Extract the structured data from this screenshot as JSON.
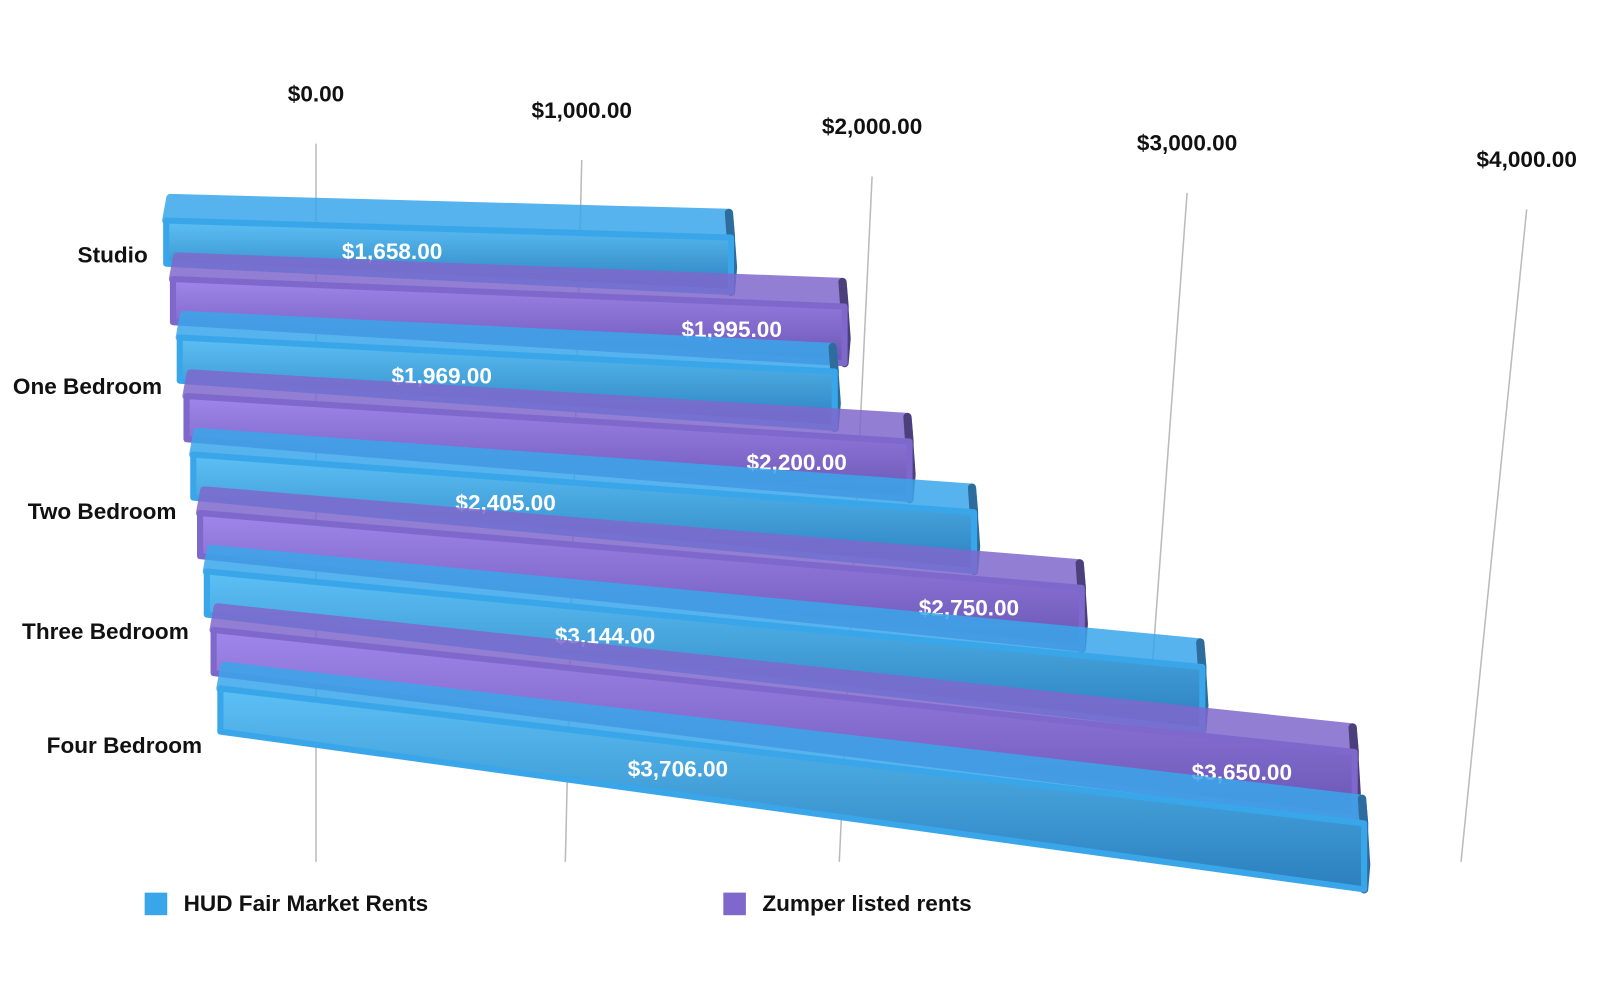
{
  "chart_data": {
    "type": "bar3d",
    "categories": [
      "Studio",
      "One Bedroom",
      "Two Bedroom",
      "Three Bedroom",
      "Four Bedroom"
    ],
    "series": [
      {
        "name": "HUD Fair Market Rents",
        "color": "#3aa6ea",
        "values": [
          1658,
          1969,
          2405,
          3144,
          3706
        ],
        "value_labels": [
          "$1,658.00",
          "$1,969.00",
          "$2,405.00",
          "$3,144.00",
          "$3,706.00"
        ]
      },
      {
        "name": "Zumper listed rents",
        "color": "#7f68cc",
        "values": [
          1995,
          2200,
          2750,
          3650,
          null
        ],
        "value_labels": [
          "$1,995.00",
          "$2,200.00",
          "$2,750.00",
          "$3,650.00",
          null
        ]
      }
    ],
    "xlim": [
      0,
      4000
    ],
    "xticks": [
      {
        "value": 0,
        "label": "$0.00"
      },
      {
        "value": 1000,
        "label": "$1,000.00"
      },
      {
        "value": 2000,
        "label": "$2,000.00"
      },
      {
        "value": 3000,
        "label": "$3,000.00"
      },
      {
        "value": 4000,
        "label": "$4,000.00"
      }
    ],
    "grid": true,
    "legend": "bottom"
  }
}
